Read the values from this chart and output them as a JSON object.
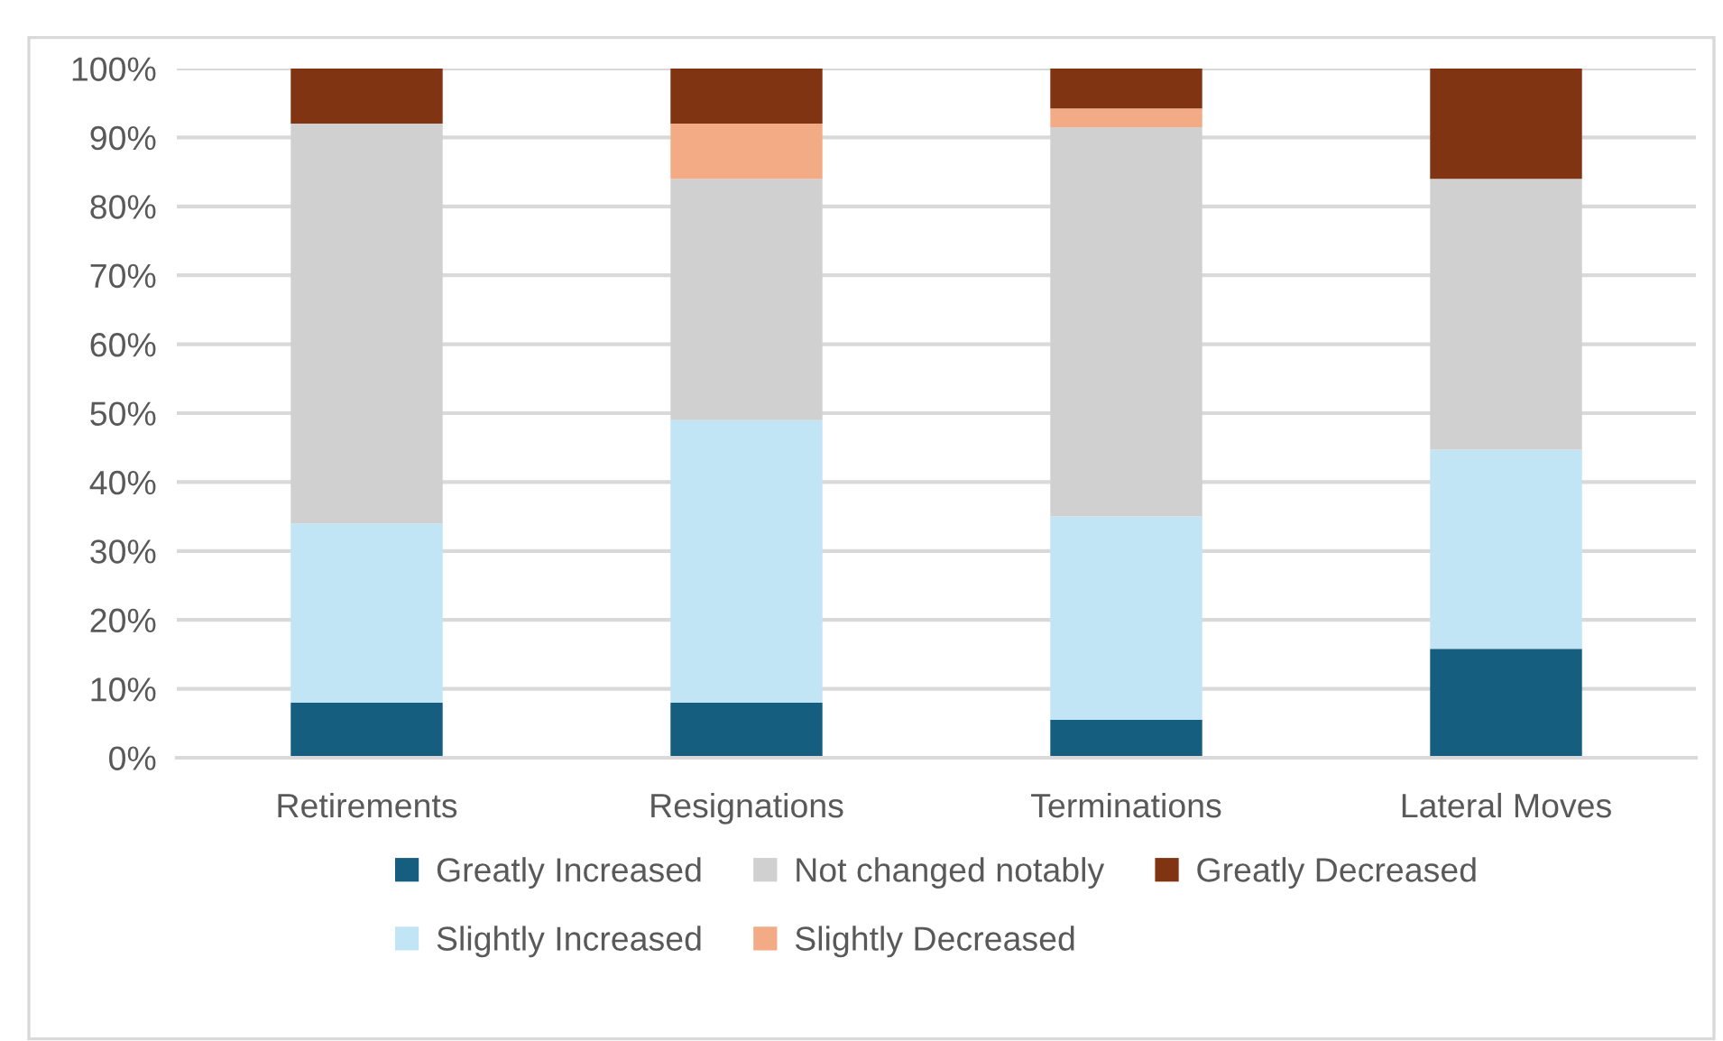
{
  "chart_data": {
    "type": "bar",
    "stacked": true,
    "categories": [
      "Retirements",
      "Resignations",
      "Terminations",
      "Lateral Moves"
    ],
    "series": [
      {
        "name": "Greatly Increased",
        "color": "#165e80",
        "values": [
          8,
          8,
          5.5,
          15.8
        ]
      },
      {
        "name": "Slightly Increased",
        "color": "#c1e5f5",
        "values": [
          26,
          41,
          29.5,
          28.9
        ]
      },
      {
        "name": "Not changed notably",
        "color": "#d0d0d0",
        "values": [
          58,
          35,
          56.5,
          39.3
        ]
      },
      {
        "name": "Slightly Decreased",
        "color": "#f2ab85",
        "values": [
          0,
          8,
          2.7,
          0
        ]
      },
      {
        "name": "Greatly Decreased",
        "color": "#813411",
        "values": [
          8,
          8,
          5.8,
          16
        ]
      }
    ],
    "ylim": [
      0,
      100
    ],
    "yticks": [
      {
        "value": 0,
        "label": "0%"
      },
      {
        "value": 10,
        "label": "10%"
      },
      {
        "value": 20,
        "label": "20%"
      },
      {
        "value": 30,
        "label": "30%"
      },
      {
        "value": 40,
        "label": "40%"
      },
      {
        "value": 50,
        "label": "50%"
      },
      {
        "value": 60,
        "label": "60%"
      },
      {
        "value": 70,
        "label": "70%"
      },
      {
        "value": 80,
        "label": "80%"
      },
      {
        "value": 90,
        "label": "90%"
      },
      {
        "value": 100,
        "label": "100%"
      }
    ],
    "grid": "y",
    "legend": "bottom"
  }
}
